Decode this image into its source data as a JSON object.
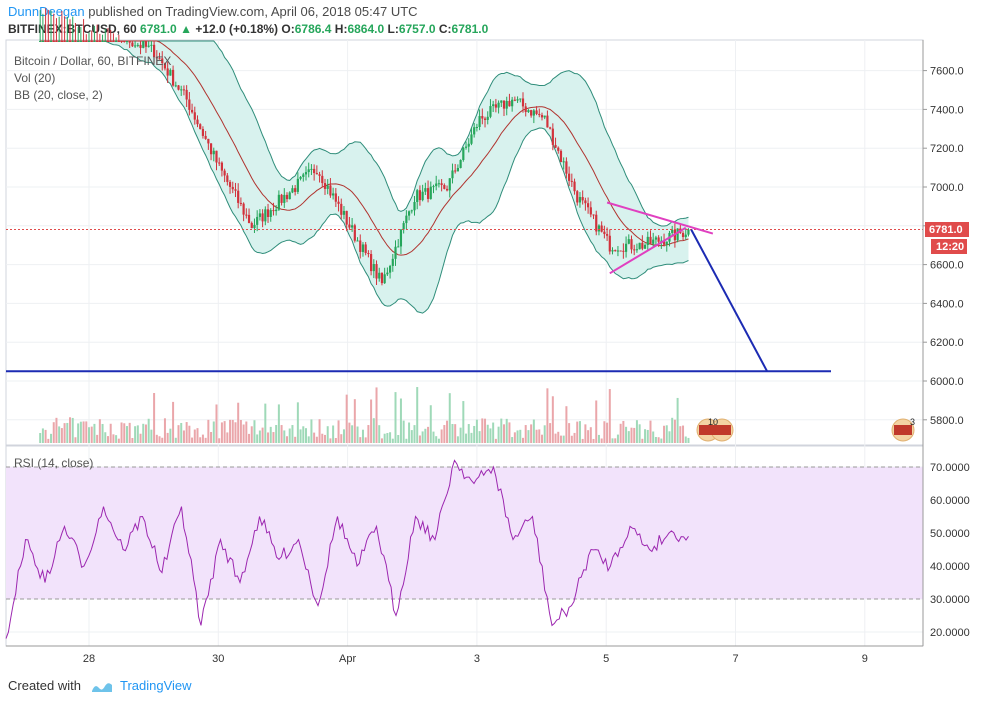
{
  "header": {
    "user": "DunnDeegan",
    "published_text": "published on TradingView.com, April 06, 2018 05:47 UTC",
    "symbol": "BITFINEX:BTCUSD, 60",
    "last": "6781.0",
    "change_arrow": "▲",
    "change": "+12.0 (+0.18%)",
    "o_label": "O:",
    "o": "6786.4",
    "h_label": "H:",
    "h": "6864.0",
    "l_label": "L:",
    "l": "6757.0",
    "c_label": "C:",
    "c": "6781.0"
  },
  "legend": {
    "main": "Bitcoin / Dollar, 60, BITFINEX",
    "vol": "Vol (20)",
    "bb": "BB (20, close, 2)",
    "rsi": "RSI (14, close)"
  },
  "price_badge": "6781.0",
  "time_badge": "12:20",
  "event_badges": [
    "10",
    "3"
  ],
  "footer": {
    "created_with": "Created with",
    "brand": "TradingView"
  },
  "colors": {
    "up": "#26a65b",
    "down": "#d2323c",
    "bb_fill": "#d8f2ee",
    "bb_line": "#2f8d7a",
    "basis": "#b0342f",
    "drawing": "#1c2bb3",
    "triangle": "#e040c0",
    "rsi_line": "#9c27b0",
    "rsi_band": "#f2e3fb",
    "badge": "#e04b4b"
  },
  "chart_data": [
    {
      "type": "candlestick",
      "title": "Bitcoin / Dollar, 60, BITFINEX",
      "ylim": [
        5700,
        7700
      ],
      "y_ticks": [
        "7600.0",
        "7400.0",
        "7200.0",
        "7000.0",
        "6800.0",
        "6600.0",
        "6400.0",
        "6200.0",
        "6000.0",
        "5800.0"
      ],
      "x_ticks": [
        "28",
        "30",
        "Apr",
        "3",
        "5",
        "7",
        "9"
      ],
      "x": [
        "03-27 06:00",
        "03-28 00:00",
        "03-29 00:00",
        "03-29 12:00",
        "03-30 00:00",
        "03-30 12:00",
        "03-31 00:00",
        "03-31 12:00",
        "04-01 00:00",
        "04-01 12:00",
        "04-02 00:00",
        "04-02 12:00",
        "04-03 00:00",
        "04-03 12:00",
        "04-04 00:00",
        "04-04 12:00",
        "04-05 00:00",
        "04-05 12:00",
        "04-06 00:00",
        "04-06 05:00"
      ],
      "close": [
        7950,
        7850,
        7700,
        7450,
        7100,
        6800,
        6950,
        7100,
        6800,
        6500,
        6950,
        7000,
        7350,
        7450,
        7350,
        6950,
        6700,
        6700,
        6750,
        6781
      ],
      "last_price": 6781.0,
      "horizontal_line": 6050,
      "projection": [
        [
          "04-06 06:00",
          6781
        ],
        [
          "04-07 10:00",
          6050
        ]
      ],
      "triangle_top": [
        [
          "04-04 23:00",
          6920
        ],
        [
          "04-06 14:00",
          6760
        ]
      ],
      "triangle_bottom": [
        [
          "04-05 00:00",
          6555
        ],
        [
          "04-06 04:00",
          6790
        ]
      ]
    },
    {
      "type": "line",
      "title": "RSI (14, close)",
      "ylim": [
        15,
        75
      ],
      "y_ticks": [
        "70.0000",
        "60.0000",
        "50.0000",
        "40.0000",
        "30.0000",
        "20.0000"
      ],
      "band": [
        30,
        70
      ],
      "values": [
        18,
        48,
        35,
        52,
        40,
        58,
        45,
        55,
        38,
        58,
        22,
        48,
        35,
        55,
        42,
        48,
        28,
        55,
        40,
        52,
        25,
        55,
        48,
        72,
        65,
        70,
        48,
        55,
        22,
        28,
        45,
        40,
        52,
        45,
        50,
        49
      ]
    }
  ]
}
